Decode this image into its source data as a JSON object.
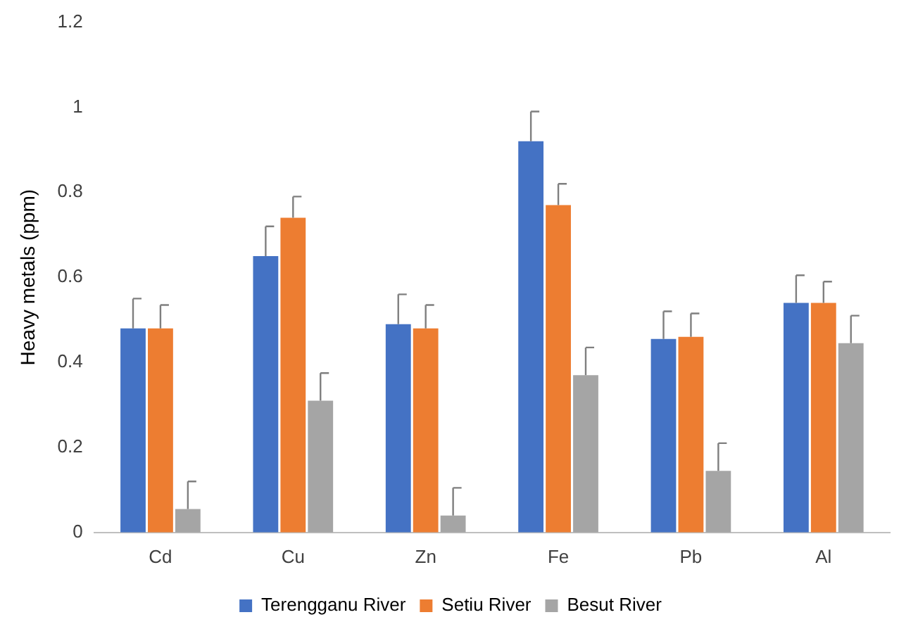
{
  "chart_data": {
    "type": "bar",
    "ylabel": "Heavy metals (ppm)",
    "categories": [
      "Cd",
      "Cu",
      "Zn",
      "Fe",
      "Pb",
      "Al"
    ],
    "series": [
      {
        "name": "Terengganu River",
        "color": "#4472c4",
        "values": [
          0.48,
          0.65,
          0.49,
          0.92,
          0.455,
          0.54
        ],
        "errors": [
          [
            0.48,
            0.55
          ],
          [
            0.65,
            0.72
          ],
          [
            0.49,
            0.56
          ],
          [
            0.92,
            0.99
          ],
          [
            0.455,
            0.52
          ],
          [
            0.54,
            0.605
          ]
        ]
      },
      {
        "name": "Setiu River",
        "color": "#ed7d31",
        "values": [
          0.48,
          0.74,
          0.48,
          0.77,
          0.46,
          0.54
        ],
        "errors": [
          [
            0.48,
            0.535
          ],
          [
            0.74,
            0.79
          ],
          [
            0.48,
            0.535
          ],
          [
            0.77,
            0.82
          ],
          [
            0.46,
            0.515
          ],
          [
            0.54,
            0.59
          ]
        ]
      },
      {
        "name": "Besut River",
        "color": "#a5a5a5",
        "values": [
          0.055,
          0.31,
          0.04,
          0.37,
          0.145,
          0.445
        ],
        "errors": [
          [
            0.055,
            0.12
          ],
          [
            0.31,
            0.375
          ],
          [
            0.04,
            0.105
          ],
          [
            0.37,
            0.435
          ],
          [
            0.145,
            0.21
          ],
          [
            0.445,
            0.51
          ]
        ]
      }
    ],
    "ylim": [
      0,
      1.2
    ],
    "yticks": [
      0,
      0.2,
      0.4,
      0.6,
      0.8,
      1,
      1.2
    ],
    "grid": false,
    "legend": "bottom"
  }
}
